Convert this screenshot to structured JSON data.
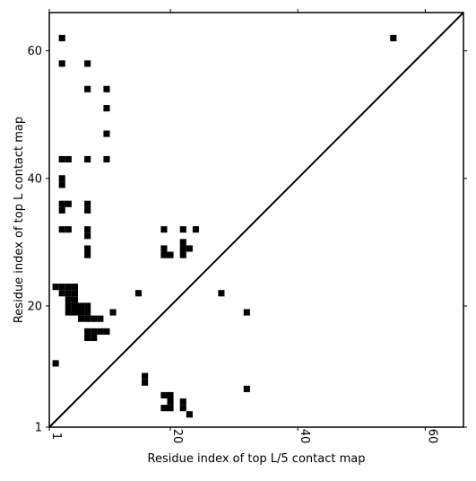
{
  "chart_data": {
    "type": "heatmap",
    "title": "",
    "xlabel": "Residue index of top L/5 contact map",
    "ylabel": "Residue index of top L contact map",
    "xlim": [
      1,
      66
    ],
    "ylim": [
      1,
      66
    ],
    "x_ticks": [
      {
        "value": 1,
        "label": "1",
        "rotation": -90
      },
      {
        "value": 20,
        "label": "20",
        "rotation": -90
      },
      {
        "value": 40,
        "label": "40",
        "rotation": -90
      },
      {
        "value": 60,
        "label": "60",
        "rotation": -90
      }
    ],
    "y_ticks": [
      {
        "value": 1,
        "label": "1"
      },
      {
        "value": 20,
        "label": "20"
      },
      {
        "value": 40,
        "label": "40"
      },
      {
        "value": 60,
        "label": "60"
      }
    ],
    "cell_color": "#000000",
    "background_color": "#ffffff",
    "diagonal": {
      "from": [
        1,
        1
      ],
      "to": [
        66,
        66
      ],
      "color": "#000000"
    },
    "grid": false,
    "legend": "none",
    "contacts_top_L": [
      [
        3,
        62
      ],
      [
        3,
        58
      ],
      [
        7,
        58
      ],
      [
        7,
        54
      ],
      [
        10,
        54
      ],
      [
        10,
        51
      ],
      [
        10,
        47
      ],
      [
        3,
        43
      ],
      [
        4,
        43
      ],
      [
        7,
        43
      ],
      [
        10,
        43
      ],
      [
        3,
        40
      ],
      [
        3,
        39
      ],
      [
        3,
        36
      ],
      [
        4,
        36
      ],
      [
        3,
        35
      ],
      [
        7,
        36
      ],
      [
        7,
        35
      ],
      [
        3,
        32
      ],
      [
        4,
        32
      ],
      [
        7,
        32
      ],
      [
        7,
        31
      ],
      [
        7,
        29
      ],
      [
        7,
        28
      ],
      [
        2,
        23
      ],
      [
        3,
        23
      ],
      [
        4,
        23
      ],
      [
        5,
        23
      ],
      [
        3,
        22
      ],
      [
        4,
        22
      ],
      [
        5,
        22
      ],
      [
        4,
        21
      ],
      [
        5,
        21
      ],
      [
        4,
        20
      ],
      [
        5,
        20
      ],
      [
        6,
        20
      ],
      [
        7,
        20
      ],
      [
        4,
        19
      ],
      [
        5,
        19
      ],
      [
        6,
        19
      ],
      [
        7,
        19
      ],
      [
        6,
        18
      ],
      [
        7,
        18
      ],
      [
        8,
        18
      ],
      [
        9,
        18
      ],
      [
        7,
        16
      ],
      [
        8,
        16
      ],
      [
        9,
        16
      ],
      [
        10,
        16
      ],
      [
        7,
        15
      ],
      [
        8,
        15
      ],
      [
        2,
        11
      ],
      [
        19,
        32
      ],
      [
        22,
        32
      ],
      [
        24,
        32
      ],
      [
        22,
        30
      ],
      [
        19,
        29
      ],
      [
        22,
        29
      ],
      [
        23,
        29
      ],
      [
        19,
        28
      ],
      [
        20,
        28
      ],
      [
        22,
        28
      ],
      [
        15,
        22
      ],
      [
        28,
        22
      ],
      [
        11,
        19
      ],
      [
        32,
        19
      ],
      [
        55,
        62
      ]
    ],
    "contacts_top_L5": [
      [
        16,
        9
      ],
      [
        16,
        8
      ],
      [
        32,
        7
      ],
      [
        19,
        6
      ],
      [
        20,
        6
      ],
      [
        20,
        5
      ],
      [
        22,
        5
      ],
      [
        20,
        4
      ],
      [
        22,
        4
      ],
      [
        19,
        4
      ],
      [
        23,
        3
      ]
    ]
  }
}
